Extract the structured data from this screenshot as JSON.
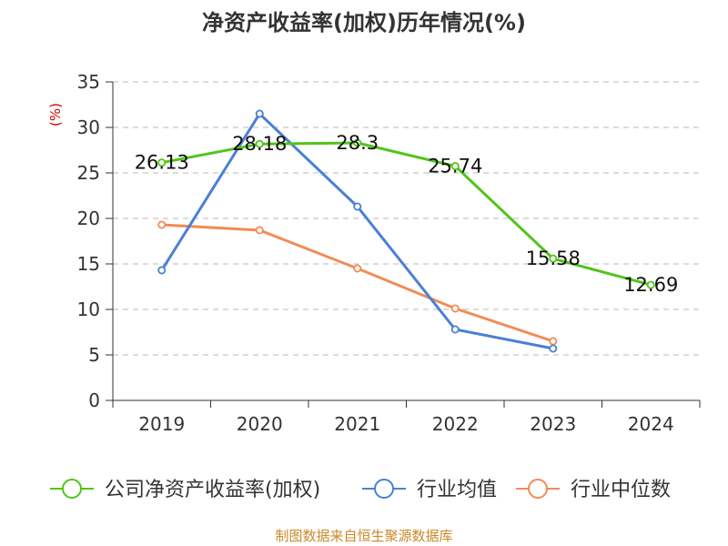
{
  "chart_data": {
    "type": "line",
    "title": "净资产收益率(加权)历年情况(%)",
    "xlabel": "",
    "ylabel": "(%)",
    "categories": [
      "2019",
      "2020",
      "2021",
      "2022",
      "2023",
      "2024"
    ],
    "ylim": [
      0,
      35
    ],
    "yticks": [
      0,
      5,
      10,
      15,
      20,
      25,
      30,
      35
    ],
    "grid": true,
    "legend_position": "bottom",
    "series": [
      {
        "name": "公司净资产收益率(加权)",
        "color": "#52c41a",
        "values": [
          26.13,
          28.18,
          28.3,
          25.74,
          15.58,
          12.69
        ],
        "labels": [
          "26.13",
          "28.18",
          "28.3",
          "25.74",
          "15.58",
          "12.69"
        ]
      },
      {
        "name": "行业均值",
        "color": "#4a7fd6",
        "values": [
          14.3,
          31.5,
          21.3,
          7.8,
          5.7,
          null
        ]
      },
      {
        "name": "行业中位数",
        "color": "#f28b56",
        "values": [
          19.3,
          18.7,
          14.5,
          10.1,
          6.5,
          null
        ]
      }
    ],
    "source_note": "制图数据来自恒生聚源数据库",
    "colors": {
      "ylabel": "#cc0000",
      "source": "#c8892a",
      "axis": "#333333",
      "grid": "#c8c8c8"
    }
  }
}
